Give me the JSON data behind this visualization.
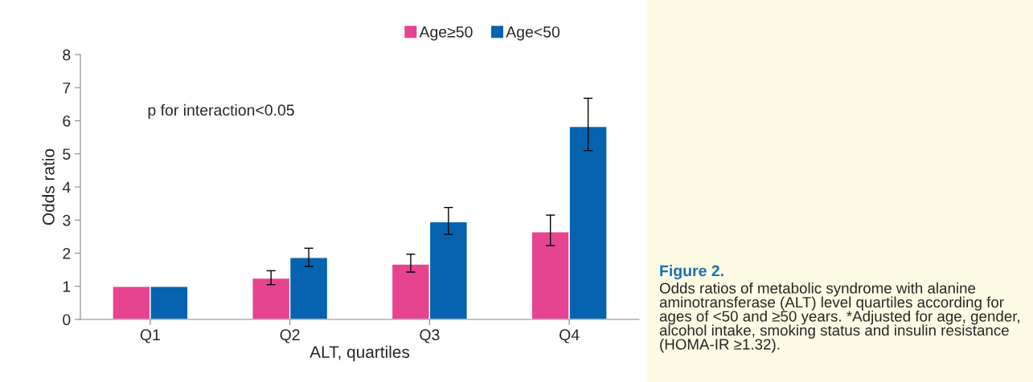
{
  "chart_data": {
    "type": "bar",
    "xlabel": "ALT, quartiles",
    "ylabel": "Odds ratio",
    "categories": [
      "Q1",
      "Q2",
      "Q3",
      "Q4"
    ],
    "series": [
      {
        "name": "Age≥50",
        "color": "#e64391",
        "values": [
          1,
          1.25,
          1.67,
          2.65
        ],
        "errors": [
          null,
          [
            1.05,
            1.47
          ],
          [
            1.43,
            1.97
          ],
          [
            2.23,
            3.15
          ]
        ]
      },
      {
        "name": "Age<50",
        "color": "#0563b0",
        "values": [
          1,
          1.87,
          2.95,
          5.83
        ],
        "errors": [
          null,
          [
            1.6,
            2.15
          ],
          [
            2.57,
            3.38
          ],
          [
            5.1,
            6.68
          ]
        ]
      }
    ],
    "ylim": [
      0,
      8
    ],
    "yticks": [
      0,
      1,
      2,
      3,
      4,
      5,
      6,
      7,
      8
    ],
    "grid": false,
    "legend": "top",
    "annotations": [
      "p for interaction<0.05",
      "Figure 2.",
      "Odds ratios of metabolic syndrome with alanine aminotransferase (ALT) level quartiles according for ages of <50 and ≥50 years. *Adjusted for age, gender, alcohol intake, smoking status and insulin resistance (HOMA-IR ≥1.32)."
    ]
  }
}
